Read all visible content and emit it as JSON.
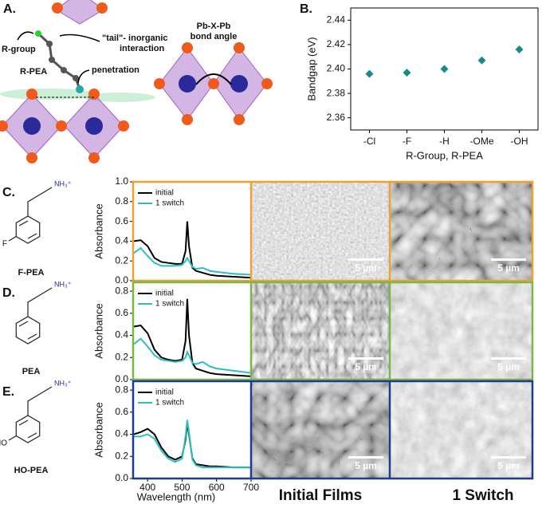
{
  "panel_a": {
    "label": "A.",
    "r_group": "R-group",
    "r_pea": "R-PEA",
    "tail": [
      "\"tail\"- inorganic",
      "interaction"
    ],
    "penetration": "penetration",
    "bond_angle": [
      "Pb-X-Pb",
      "bond angle"
    ]
  },
  "chart_data": [
    {
      "type": "scatter",
      "label": "B.",
      "categories": [
        "-Cl",
        "-F",
        "-H",
        "-OMe",
        "-OH"
      ],
      "values": [
        2.396,
        2.397,
        2.4,
        2.407,
        2.416
      ],
      "color": "#178a8a",
      "ylim": [
        2.35,
        2.45
      ],
      "yticks": [
        2.36,
        2.38,
        {
          "value": 2.4,
          "label": "2.40"
        },
        2.42,
        2.44
      ],
      "ylabel": "Bandgap (eV)",
      "xlabel": "R-Group, R-PEA"
    },
    {
      "type": "line",
      "label": "C.",
      "frame_color": "#f0a030",
      "x": [
        360,
        380,
        400,
        420,
        440,
        460,
        480,
        500,
        510,
        515,
        520,
        530,
        540,
        560,
        580,
        600,
        650,
        700
      ],
      "series": [
        {
          "name": "initial",
          "color": "#000000",
          "values": [
            0.4,
            0.41,
            0.35,
            0.23,
            0.19,
            0.18,
            0.17,
            0.17,
            0.3,
            0.6,
            0.35,
            0.13,
            0.1,
            0.08,
            0.06,
            0.05,
            0.04,
            0.03
          ]
        },
        {
          "name": "1 switch",
          "color": "#2bbfbf",
          "values": [
            0.28,
            0.33,
            0.25,
            0.18,
            0.15,
            0.15,
            0.15,
            0.16,
            0.2,
            0.23,
            0.2,
            0.14,
            0.12,
            0.13,
            0.1,
            0.09,
            0.07,
            0.06
          ]
        }
      ],
      "xlim": [
        358,
        700
      ],
      "ylim": [
        0,
        1.0
      ],
      "yticks": [
        {
          "value": 0,
          "label": "0.0"
        },
        0.2,
        0.4,
        0.6,
        0.8,
        {
          "value": 1,
          "label": "1.0"
        }
      ],
      "ylabel": "Absorbance"
    },
    {
      "type": "line",
      "label": "D.",
      "frame_color": "#7ab648",
      "x": [
        360,
        380,
        400,
        420,
        440,
        460,
        480,
        500,
        510,
        515,
        520,
        530,
        540,
        560,
        580,
        600,
        650,
        700
      ],
      "series": [
        {
          "name": "initial",
          "color": "#000000",
          "values": [
            0.48,
            0.49,
            0.42,
            0.27,
            0.2,
            0.18,
            0.17,
            0.18,
            0.35,
            0.73,
            0.4,
            0.15,
            0.1,
            0.08,
            0.06,
            0.05,
            0.04,
            0.03
          ]
        },
        {
          "name": "1 switch",
          "color": "#2bbfbf",
          "values": [
            0.32,
            0.37,
            0.3,
            0.22,
            0.18,
            0.17,
            0.16,
            0.17,
            0.2,
            0.25,
            0.22,
            0.15,
            0.14,
            0.16,
            0.12,
            0.1,
            0.08,
            0.06
          ]
        }
      ],
      "xlim": [
        358,
        700
      ],
      "ylim": [
        0,
        0.88
      ],
      "yticks": [
        {
          "value": 0,
          "label": "0.0"
        },
        0.2,
        0.4,
        0.6,
        0.8
      ],
      "ylabel": "Absorbance"
    },
    {
      "type": "line",
      "label": "E.",
      "frame_color": "#1f3a93",
      "x": [
        360,
        380,
        400,
        420,
        440,
        460,
        480,
        500,
        510,
        515,
        520,
        530,
        540,
        560,
        580,
        600,
        650,
        700
      ],
      "series": [
        {
          "name": "initial",
          "color": "#000000",
          "values": [
            0.4,
            0.42,
            0.45,
            0.4,
            0.28,
            0.2,
            0.17,
            0.2,
            0.35,
            0.5,
            0.4,
            0.18,
            0.13,
            0.12,
            0.11,
            0.11,
            0.1,
            0.1
          ]
        },
        {
          "name": "1 switch",
          "color": "#2bbfbf",
          "values": [
            0.38,
            0.38,
            0.4,
            0.36,
            0.25,
            0.18,
            0.15,
            0.18,
            0.38,
            0.53,
            0.42,
            0.17,
            0.12,
            0.1,
            0.1,
            0.1,
            0.1,
            0.1
          ]
        }
      ],
      "xlim": [
        358,
        700
      ],
      "ylim": [
        0,
        0.88
      ],
      "yticks": [
        {
          "value": 0,
          "label": "0.0"
        },
        0.2,
        0.4,
        0.6,
        0.8
      ],
      "xticks": [
        400,
        500,
        600,
        700
      ],
      "ylabel": "Absorbance",
      "xlabel": "Wavelength (nm)"
    }
  ],
  "molecules": [
    {
      "name": "F-PEA",
      "amine": "NH₃⁺",
      "substituent": "F"
    },
    {
      "name": "PEA",
      "amine": "NH₃⁺"
    },
    {
      "name": "HO-PEA",
      "amine": "NH₃⁺",
      "substituent": "HO"
    }
  ],
  "sem": {
    "columns": [
      "Initial Films",
      "1 Switch"
    ],
    "scale_bar": "5 µm"
  }
}
